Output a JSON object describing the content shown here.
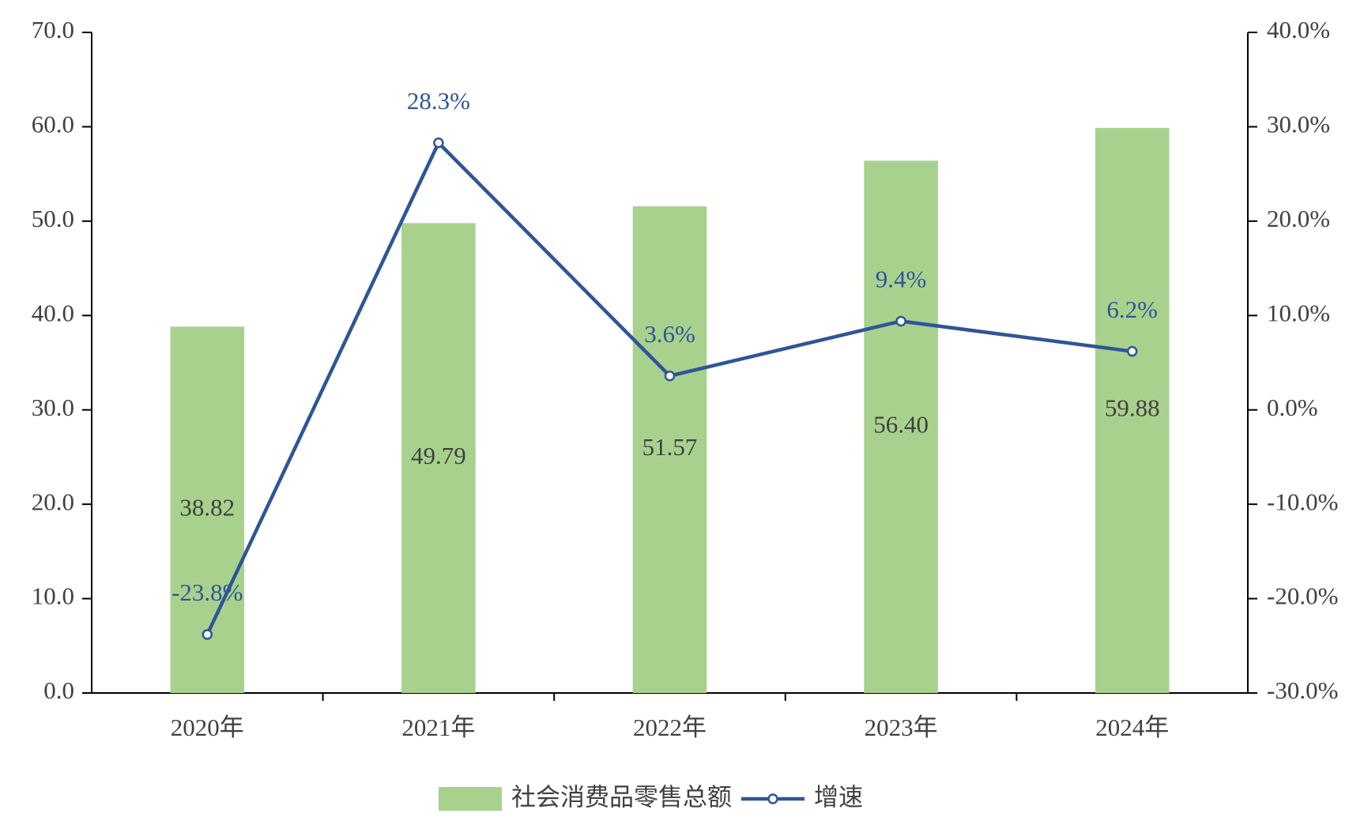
{
  "chart_data": {
    "type": "bar",
    "categories": [
      "2020年",
      "2021年",
      "2022年",
      "2023年",
      "2024年"
    ],
    "series": [
      {
        "name": "社会消费品零售总额",
        "type": "bar",
        "color": "#a9d18e",
        "values": [
          38.82,
          49.79,
          51.57,
          56.4,
          59.88
        ],
        "value_labels": [
          "38.82",
          "49.79",
          "51.57",
          "56.40",
          "59.88"
        ]
      },
      {
        "name": "增速",
        "type": "line",
        "axis": "y2",
        "color": "#2f5597",
        "values": [
          -23.8,
          28.3,
          3.6,
          9.4,
          6.2
        ],
        "value_labels": [
          "-23.8%",
          "28.3%",
          "3.6%",
          "9.4%",
          "6.2%"
        ]
      }
    ],
    "ylim": [
      0,
      70
    ],
    "yticks": [
      {
        "value": 0,
        "label": "0.0"
      },
      {
        "value": 10,
        "label": "10.0"
      },
      {
        "value": 20,
        "label": "20.0"
      },
      {
        "value": 30,
        "label": "30.0"
      },
      {
        "value": 40,
        "label": "40.0"
      },
      {
        "value": 50,
        "label": "50.0"
      },
      {
        "value": 60,
        "label": "60.0"
      },
      {
        "value": 70,
        "label": "70.0"
      }
    ],
    "y2lim": [
      -30,
      40
    ],
    "y2ticks": [
      {
        "value": -30,
        "label": "-30.0%"
      },
      {
        "value": -20,
        "label": "-20.0%"
      },
      {
        "value": -10,
        "label": "-10.0%"
      },
      {
        "value": 0,
        "label": "0.0%"
      },
      {
        "value": 10,
        "label": "10.0%"
      },
      {
        "value": 20,
        "label": "20.0%"
      },
      {
        "value": 30,
        "label": "30.0%"
      },
      {
        "value": 40,
        "label": "40.0%"
      }
    ],
    "grid": false,
    "legend": "bottom"
  }
}
